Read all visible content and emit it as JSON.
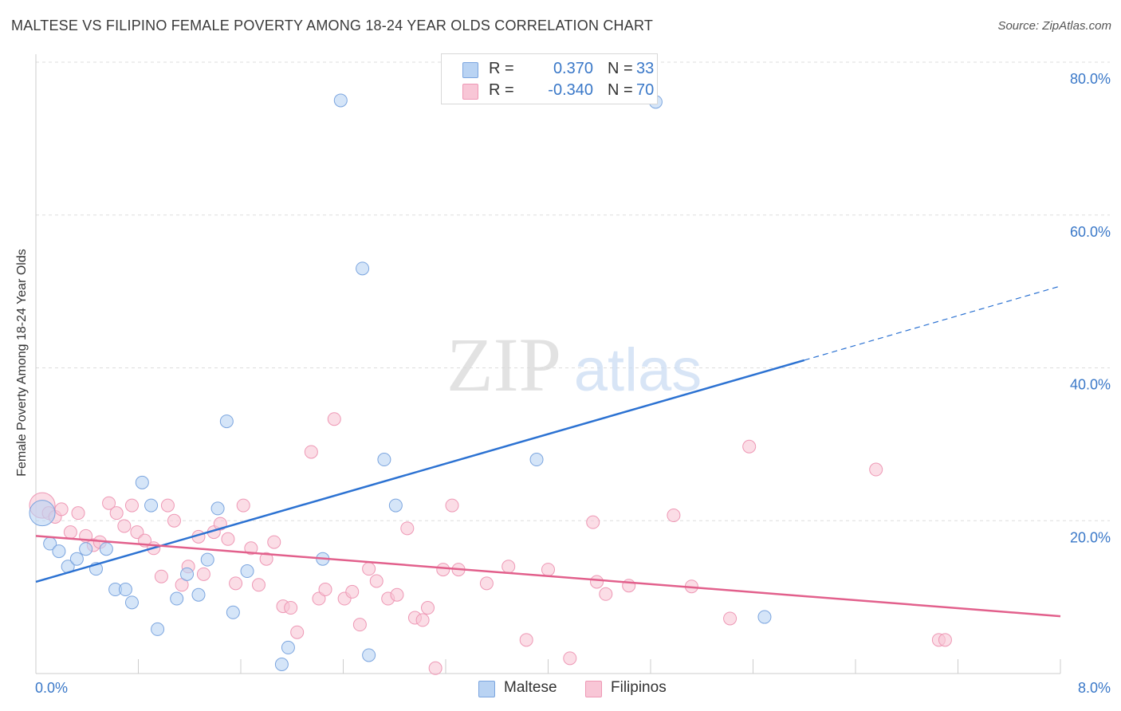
{
  "header": {
    "title": "MALTESE VS FILIPINO FEMALE POVERTY AMONG 18-24 YEAR OLDS CORRELATION CHART",
    "source": "Source: ZipAtlas.com"
  },
  "watermark": {
    "zip": "ZIP",
    "atlas": "atlas"
  },
  "stats": {
    "maltese": {
      "r_label": "R =",
      "r_value": "0.370",
      "n_label": "N =",
      "n_value": "33"
    },
    "filipinos": {
      "r_label": "R =",
      "r_value": "-0.340",
      "n_label": "N =",
      "n_value": "70"
    }
  },
  "legend": {
    "maltese": "Maltese",
    "filipinos": "Filipinos"
  },
  "colors": {
    "maltese_fill": "#b9d3f3",
    "maltese_stroke": "#7ba5df",
    "maltese_line": "#2c72d2",
    "filipinos_fill": "#f8c6d6",
    "filipinos_stroke": "#ee98b5",
    "filipinos_line": "#e2608c",
    "tick_label": "#3a78c8",
    "grid": "#dddddd"
  },
  "chart_data": {
    "type": "scatter",
    "title": "MALTESE VS FILIPINO FEMALE POVERTY AMONG 18-24 YEAR OLDS CORRELATION CHART",
    "xlabel": "",
    "ylabel": "Female Poverty Among 18-24 Year Olds",
    "xlim": [
      0,
      8
    ],
    "ylim": [
      0,
      80
    ],
    "x_tick_labels": [
      "0.0%",
      "8.0%"
    ],
    "y_ticks": [
      20,
      40,
      60,
      80
    ],
    "y_tick_labels": [
      "20.0%",
      "40.0%",
      "60.0%",
      "80.0%"
    ],
    "grid": true,
    "legend_position": "bottom-center",
    "series": [
      {
        "name": "Maltese",
        "r": 0.37,
        "n": 33,
        "trend": {
          "x0": 0.0,
          "y0": 12.0,
          "x1": 6.0,
          "y1": 41.0,
          "dash_to_x": 8.0,
          "dash_to_y": 50.7
        },
        "points": [
          [
            0.05,
            21.0
          ],
          [
            0.11,
            17.0
          ],
          [
            0.18,
            16.0
          ],
          [
            0.25,
            14.0
          ],
          [
            0.32,
            15.0
          ],
          [
            0.39,
            16.3
          ],
          [
            0.47,
            13.7
          ],
          [
            0.55,
            16.3
          ],
          [
            0.62,
            11.0
          ],
          [
            0.7,
            11.0
          ],
          [
            0.75,
            9.3
          ],
          [
            0.83,
            25.0
          ],
          [
            0.9,
            22.0
          ],
          [
            0.95,
            5.8
          ],
          [
            1.1,
            9.8
          ],
          [
            1.18,
            13.0
          ],
          [
            1.27,
            10.3
          ],
          [
            1.34,
            14.9
          ],
          [
            1.42,
            21.6
          ],
          [
            1.49,
            33.0
          ],
          [
            1.54,
            8.0
          ],
          [
            1.65,
            13.4
          ],
          [
            1.92,
            1.2
          ],
          [
            1.97,
            3.4
          ],
          [
            2.24,
            15.0
          ],
          [
            2.38,
            75.0
          ],
          [
            2.55,
            53.0
          ],
          [
            2.6,
            2.4
          ],
          [
            2.72,
            28.0
          ],
          [
            2.81,
            22.0
          ],
          [
            3.91,
            28.0
          ],
          [
            4.84,
            74.8
          ],
          [
            5.69,
            7.4
          ]
        ]
      },
      {
        "name": "Filipinos",
        "r": -0.34,
        "n": 70,
        "trend": {
          "x0": 0.0,
          "y0": 18.0,
          "x1": 8.0,
          "y1": 7.5
        },
        "points": [
          [
            0.05,
            22.0
          ],
          [
            0.1,
            21.0
          ],
          [
            0.15,
            20.5
          ],
          [
            0.2,
            21.5
          ],
          [
            0.27,
            18.5
          ],
          [
            0.33,
            21.0
          ],
          [
            0.39,
            18.0
          ],
          [
            0.45,
            16.8
          ],
          [
            0.5,
            17.2
          ],
          [
            0.57,
            22.3
          ],
          [
            0.63,
            21.0
          ],
          [
            0.69,
            19.3
          ],
          [
            0.75,
            22.0
          ],
          [
            0.79,
            18.5
          ],
          [
            0.85,
            17.4
          ],
          [
            0.92,
            16.4
          ],
          [
            0.98,
            12.7
          ],
          [
            1.03,
            22.0
          ],
          [
            1.08,
            20.0
          ],
          [
            1.14,
            11.6
          ],
          [
            1.19,
            14.0
          ],
          [
            1.27,
            17.9
          ],
          [
            1.31,
            13.0
          ],
          [
            1.39,
            18.5
          ],
          [
            1.44,
            19.6
          ],
          [
            1.5,
            17.6
          ],
          [
            1.56,
            11.8
          ],
          [
            1.62,
            22.0
          ],
          [
            1.68,
            16.4
          ],
          [
            1.74,
            11.6
          ],
          [
            1.8,
            15.0
          ],
          [
            1.86,
            17.2
          ],
          [
            1.93,
            8.8
          ],
          [
            1.99,
            8.6
          ],
          [
            2.04,
            5.4
          ],
          [
            2.15,
            29.0
          ],
          [
            2.21,
            9.8
          ],
          [
            2.26,
            11.0
          ],
          [
            2.33,
            33.3
          ],
          [
            2.41,
            9.8
          ],
          [
            2.47,
            10.7
          ],
          [
            2.53,
            6.4
          ],
          [
            2.6,
            13.7
          ],
          [
            2.66,
            12.1
          ],
          [
            2.75,
            9.8
          ],
          [
            2.82,
            10.3
          ],
          [
            2.9,
            19.0
          ],
          [
            2.96,
            7.3
          ],
          [
            3.02,
            7.0
          ],
          [
            3.06,
            8.6
          ],
          [
            3.12,
            0.7
          ],
          [
            3.18,
            13.6
          ],
          [
            3.25,
            22.0
          ],
          [
            3.3,
            13.6
          ],
          [
            3.52,
            11.8
          ],
          [
            3.69,
            14.0
          ],
          [
            3.83,
            4.4
          ],
          [
            4.0,
            13.6
          ],
          [
            4.17,
            2.0
          ],
          [
            4.35,
            19.8
          ],
          [
            4.38,
            12.0
          ],
          [
            4.45,
            10.4
          ],
          [
            4.63,
            11.5
          ],
          [
            4.98,
            20.7
          ],
          [
            5.12,
            11.4
          ],
          [
            5.42,
            7.2
          ],
          [
            5.57,
            29.7
          ],
          [
            6.56,
            26.7
          ],
          [
            7.05,
            4.4
          ],
          [
            7.1,
            4.4
          ]
        ]
      }
    ]
  }
}
